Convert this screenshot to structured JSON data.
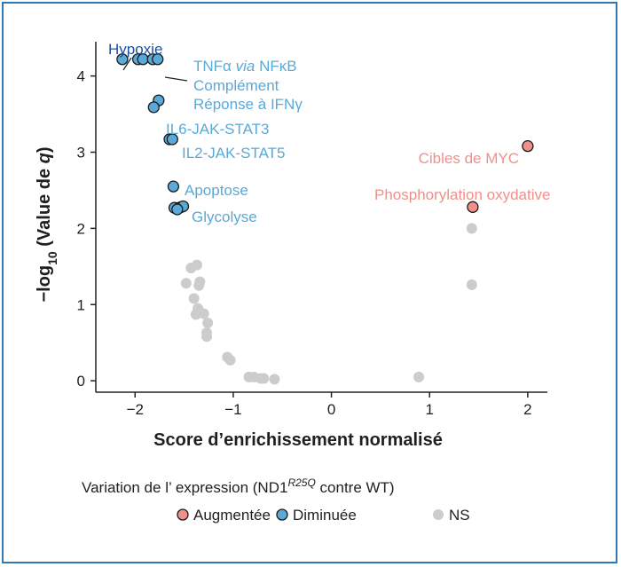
{
  "chart_data": {
    "type": "scatter",
    "xlabel": "Score d’enrichissement normalisé",
    "ylabel_parts": {
      "pre": "−log",
      "sub": "10",
      "mid": " (Value de ",
      "italic": "q",
      "post": ")"
    },
    "xlim": [
      -2.4,
      2.2
    ],
    "ylim": [
      -0.15,
      4.45
    ],
    "x_ticks": [
      -2,
      -1,
      0,
      1,
      2
    ],
    "y_ticks": [
      0,
      1,
      2,
      3,
      4
    ],
    "x_tick_labels": [
      "−2",
      "−1",
      "0",
      "1",
      "2"
    ],
    "y_tick_labels": [
      "0",
      "1",
      "2",
      "3",
      "4"
    ],
    "grid": false,
    "colors": {
      "up": "#f0908a",
      "down": "#5aa9d6",
      "ns": "#cccccc",
      "down_text": "#5aa9d6",
      "up_text": "#f0908a",
      "hypoxie_text": "#1f4e9c"
    },
    "series": [
      {
        "name": "Augmentée",
        "key": "up",
        "points": [
          [
            2.0,
            3.08
          ],
          [
            1.44,
            2.28
          ]
        ]
      },
      {
        "name": "Diminuée",
        "key": "down",
        "points": [
          [
            -2.13,
            4.22
          ],
          [
            -1.97,
            4.22
          ],
          [
            -1.92,
            4.22
          ],
          [
            -1.82,
            4.22
          ],
          [
            -1.77,
            4.22
          ],
          [
            -1.76,
            3.68
          ],
          [
            -1.81,
            3.59
          ],
          [
            -1.65,
            3.17
          ],
          [
            -1.62,
            3.17
          ],
          [
            -1.61,
            2.55
          ],
          [
            -1.6,
            2.27
          ],
          [
            -1.55,
            2.27
          ],
          [
            -1.53,
            2.28
          ],
          [
            -1.51,
            2.29
          ],
          [
            -1.57,
            2.25
          ]
        ]
      },
      {
        "name": "NS",
        "key": "ns",
        "points": [
          [
            -1.43,
            1.48
          ],
          [
            -1.37,
            1.52
          ],
          [
            -1.34,
            1.3
          ],
          [
            -1.35,
            1.25
          ],
          [
            -1.48,
            1.28
          ],
          [
            -1.4,
            1.08
          ],
          [
            -1.36,
            0.95
          ],
          [
            -1.38,
            0.87
          ],
          [
            -1.3,
            0.88
          ],
          [
            -1.26,
            0.76
          ],
          [
            -1.27,
            0.63
          ],
          [
            -1.27,
            0.58
          ],
          [
            -1.06,
            0.31
          ],
          [
            -1.03,
            0.27
          ],
          [
            -0.84,
            0.05
          ],
          [
            -0.79,
            0.05
          ],
          [
            -0.72,
            0.03
          ],
          [
            -0.69,
            0.03
          ],
          [
            -0.58,
            0.02
          ],
          [
            0.89,
            0.05
          ],
          [
            1.43,
            2.0
          ],
          [
            1.43,
            1.26
          ]
        ]
      }
    ],
    "annotations": [
      {
        "id": "hypoxie",
        "text": "Hypoxie",
        "color_key": "hypoxie_text"
      },
      {
        "id": "tnfa",
        "parts": [
          "TNFα ",
          "via",
          " NFκB"
        ],
        "color_key": "down_text"
      },
      {
        "id": "complement",
        "text": "Complément",
        "color_key": "down_text"
      },
      {
        "id": "ifng",
        "text": "Réponse à IFNγ",
        "color_key": "down_text"
      },
      {
        "id": "il6",
        "text": "IL6-JAK-STAT3",
        "color_key": "down_text"
      },
      {
        "id": "il2",
        "text": "IL2-JAK-STAT5",
        "color_key": "down_text"
      },
      {
        "id": "apoptose",
        "text": "Apoptose",
        "color_key": "down_text"
      },
      {
        "id": "glycolyse",
        "text": "Glycolyse",
        "color_key": "down_text"
      },
      {
        "id": "myc",
        "text": "Cibles de MYC",
        "color_key": "up_text"
      },
      {
        "id": "oxphos",
        "text": "Phosphorylation oxydative",
        "color_key": "up_text"
      }
    ],
    "legend": {
      "title_parts": {
        "pre": "Variation de l’ expression (ND1",
        "sup": "R25Q",
        "post": " contre WT)"
      },
      "items": [
        {
          "label": "Augmentée",
          "key": "up"
        },
        {
          "label": "Diminuée",
          "key": "down"
        },
        {
          "label": "NS",
          "key": "ns"
        }
      ],
      "placement": "bottom"
    }
  }
}
